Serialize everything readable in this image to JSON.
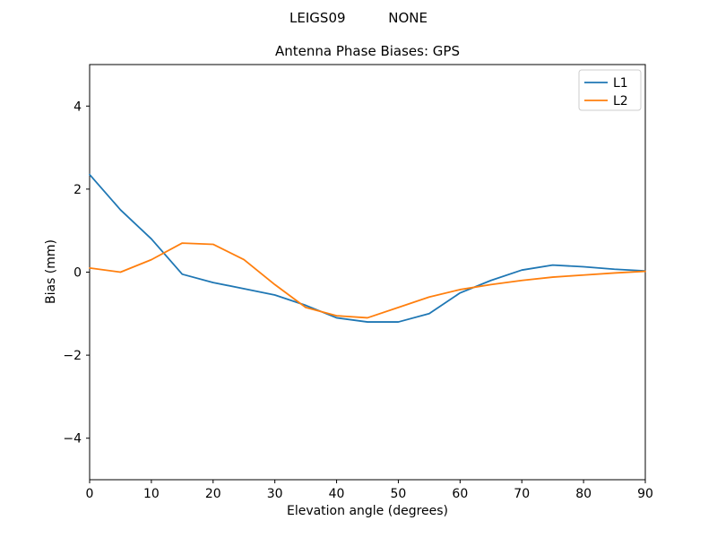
{
  "figure": {
    "suptitle": "LEIGS09          NONE",
    "background": "#ffffff"
  },
  "chart_data": {
    "type": "line",
    "title": "Antenna Phase Biases: GPS",
    "xlabel": "Elevation angle (degrees)",
    "ylabel": "Bias (mm)",
    "xlim": [
      0,
      90
    ],
    "ylim": [
      -5,
      5
    ],
    "xticks": [
      0,
      10,
      20,
      30,
      40,
      50,
      60,
      70,
      80,
      90
    ],
    "yticks": [
      -4,
      -2,
      0,
      2,
      4
    ],
    "grid": false,
    "legend_position": "upper right",
    "x": [
      0,
      5,
      10,
      15,
      20,
      25,
      30,
      35,
      40,
      45,
      50,
      55,
      60,
      65,
      70,
      75,
      80,
      85,
      90
    ],
    "series": [
      {
        "name": "L1",
        "color": "#1f77b4",
        "values": [
          2.35,
          1.5,
          0.8,
          -0.05,
          -0.25,
          -0.4,
          -0.55,
          -0.8,
          -1.1,
          -1.2,
          -1.2,
          -1.0,
          -0.5,
          -0.2,
          0.05,
          0.17,
          0.13,
          0.07,
          0.03
        ]
      },
      {
        "name": "L2",
        "color": "#ff7f0e",
        "values": [
          0.1,
          0.0,
          0.3,
          0.7,
          0.67,
          0.3,
          -0.3,
          -0.85,
          -1.05,
          -1.1,
          -0.85,
          -0.6,
          -0.42,
          -0.3,
          -0.2,
          -0.12,
          -0.07,
          -0.02,
          0.02
        ]
      }
    ],
    "axis_color": "#000000",
    "legend_border_color": "#cccccc"
  }
}
